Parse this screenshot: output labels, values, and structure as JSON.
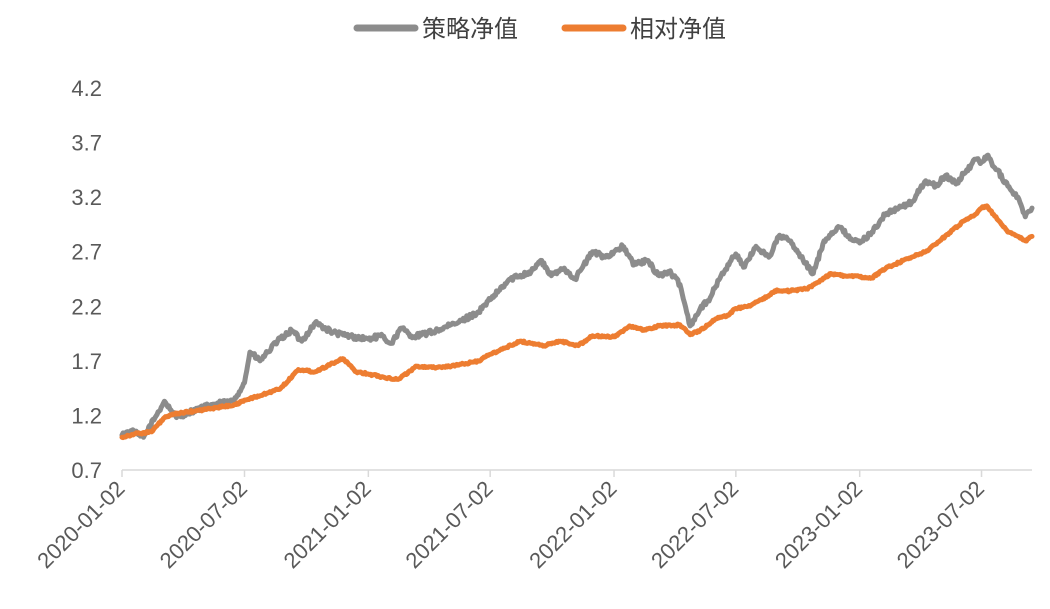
{
  "chart_data": {
    "type": "line",
    "title": "",
    "xlabel": "",
    "ylabel": "",
    "ylim": [
      0.7,
      4.2
    ],
    "yticks": [
      "4.2",
      "3.7",
      "3.2",
      "2.7",
      "2.2",
      "1.7",
      "1.2",
      "0.7"
    ],
    "xticks": [
      "2020-01-02",
      "2020-07-02",
      "2021-01-02",
      "2021-07-02",
      "2022-01-02",
      "2022-07-02",
      "2023-01-02",
      "2023-07-02"
    ],
    "xrange": [
      "2020-01-02",
      "2023-09-15"
    ],
    "legend_position": "top-center",
    "grid": false,
    "series": [
      {
        "name": "策略净值",
        "color": "#8c8c8c",
        "points": [
          [
            "2020-01-02",
            1.02
          ],
          [
            "2020-01-15",
            1.06
          ],
          [
            "2020-02-03",
            1.0
          ],
          [
            "2020-02-20",
            1.18
          ],
          [
            "2020-03-05",
            1.33
          ],
          [
            "2020-03-23",
            1.18
          ],
          [
            "2020-04-15",
            1.24
          ],
          [
            "2020-05-15",
            1.3
          ],
          [
            "2020-06-15",
            1.33
          ],
          [
            "2020-07-02",
            1.5
          ],
          [
            "2020-07-10",
            1.78
          ],
          [
            "2020-07-25",
            1.7
          ],
          [
            "2020-08-20",
            1.88
          ],
          [
            "2020-09-10",
            1.98
          ],
          [
            "2020-09-25",
            1.88
          ],
          [
            "2020-10-15",
            2.05
          ],
          [
            "2020-11-10",
            1.96
          ],
          [
            "2020-12-10",
            1.92
          ],
          [
            "2021-01-02",
            1.9
          ],
          [
            "2021-01-20",
            1.93
          ],
          [
            "2021-02-05",
            1.86
          ],
          [
            "2021-02-20",
            2.0
          ],
          [
            "2021-03-10",
            1.92
          ],
          [
            "2021-04-15",
            1.98
          ],
          [
            "2021-05-15",
            2.05
          ],
          [
            "2021-06-15",
            2.15
          ],
          [
            "2021-07-02",
            2.26
          ],
          [
            "2021-08-01",
            2.45
          ],
          [
            "2021-09-01",
            2.52
          ],
          [
            "2021-09-15",
            2.62
          ],
          [
            "2021-10-01",
            2.48
          ],
          [
            "2021-10-20",
            2.55
          ],
          [
            "2021-11-05",
            2.45
          ],
          [
            "2021-12-01",
            2.7
          ],
          [
            "2021-12-20",
            2.65
          ],
          [
            "2022-01-02",
            2.7
          ],
          [
            "2022-01-15",
            2.75
          ],
          [
            "2022-02-01",
            2.58
          ],
          [
            "2022-02-20",
            2.62
          ],
          [
            "2022-03-10",
            2.48
          ],
          [
            "2022-03-25",
            2.52
          ],
          [
            "2022-04-10",
            2.4
          ],
          [
            "2022-04-25",
            2.02
          ],
          [
            "2022-05-10",
            2.18
          ],
          [
            "2022-05-25",
            2.28
          ],
          [
            "2022-06-10",
            2.48
          ],
          [
            "2022-06-25",
            2.62
          ],
          [
            "2022-07-02",
            2.68
          ],
          [
            "2022-07-15",
            2.56
          ],
          [
            "2022-08-01",
            2.75
          ],
          [
            "2022-08-20",
            2.65
          ],
          [
            "2022-09-05",
            2.85
          ],
          [
            "2022-09-20",
            2.8
          ],
          [
            "2022-10-10",
            2.62
          ],
          [
            "2022-10-25",
            2.5
          ],
          [
            "2022-11-10",
            2.8
          ],
          [
            "2022-12-01",
            2.93
          ],
          [
            "2022-12-25",
            2.8
          ],
          [
            "2023-01-02",
            2.78
          ],
          [
            "2023-01-20",
            2.88
          ],
          [
            "2023-02-10",
            3.05
          ],
          [
            "2023-03-01",
            3.1
          ],
          [
            "2023-03-20",
            3.15
          ],
          [
            "2023-04-10",
            3.35
          ],
          [
            "2023-04-25",
            3.3
          ],
          [
            "2023-05-10",
            3.4
          ],
          [
            "2023-05-25",
            3.32
          ],
          [
            "2023-06-10",
            3.45
          ],
          [
            "2023-06-25",
            3.55
          ],
          [
            "2023-07-02",
            3.52
          ],
          [
            "2023-07-10",
            3.58
          ],
          [
            "2023-07-25",
            3.45
          ],
          [
            "2023-08-10",
            3.3
          ],
          [
            "2023-08-25",
            3.2
          ],
          [
            "2023-09-05",
            3.02
          ],
          [
            "2023-09-15",
            3.1
          ]
        ]
      },
      {
        "name": "相对净值",
        "color": "#ed7d31",
        "points": [
          [
            "2020-01-02",
            1.0
          ],
          [
            "2020-01-20",
            1.03
          ],
          [
            "2020-02-15",
            1.05
          ],
          [
            "2020-03-05",
            1.18
          ],
          [
            "2020-03-25",
            1.22
          ],
          [
            "2020-04-20",
            1.24
          ],
          [
            "2020-05-20",
            1.27
          ],
          [
            "2020-06-20",
            1.3
          ],
          [
            "2020-07-02",
            1.34
          ],
          [
            "2020-07-25",
            1.38
          ],
          [
            "2020-08-25",
            1.45
          ],
          [
            "2020-09-20",
            1.62
          ],
          [
            "2020-10-15",
            1.6
          ],
          [
            "2020-11-10",
            1.68
          ],
          [
            "2020-11-25",
            1.72
          ],
          [
            "2020-12-15",
            1.6
          ],
          [
            "2021-01-02",
            1.58
          ],
          [
            "2021-01-25",
            1.55
          ],
          [
            "2021-02-15",
            1.53
          ],
          [
            "2021-03-15",
            1.65
          ],
          [
            "2021-04-15",
            1.64
          ],
          [
            "2021-05-15",
            1.66
          ],
          [
            "2021-06-15",
            1.7
          ],
          [
            "2021-07-02",
            1.76
          ],
          [
            "2021-07-25",
            1.82
          ],
          [
            "2021-08-15",
            1.88
          ],
          [
            "2021-09-01",
            1.86
          ],
          [
            "2021-09-20",
            1.84
          ],
          [
            "2021-10-15",
            1.88
          ],
          [
            "2021-11-10",
            1.84
          ],
          [
            "2021-12-01",
            1.93
          ],
          [
            "2021-12-20",
            1.92
          ],
          [
            "2022-01-02",
            1.92
          ],
          [
            "2022-01-25",
            2.02
          ],
          [
            "2022-02-15",
            1.98
          ],
          [
            "2022-03-10",
            2.02
          ],
          [
            "2022-04-10",
            2.03
          ],
          [
            "2022-04-25",
            1.94
          ],
          [
            "2022-05-10",
            1.98
          ],
          [
            "2022-06-01",
            2.08
          ],
          [
            "2022-06-20",
            2.12
          ],
          [
            "2022-07-02",
            2.18
          ],
          [
            "2022-07-20",
            2.2
          ],
          [
            "2022-08-10",
            2.26
          ],
          [
            "2022-09-01",
            2.35
          ],
          [
            "2022-09-20",
            2.34
          ],
          [
            "2022-10-15",
            2.36
          ],
          [
            "2022-11-01",
            2.42
          ],
          [
            "2022-11-20",
            2.5
          ],
          [
            "2022-12-10",
            2.48
          ],
          [
            "2023-01-02",
            2.47
          ],
          [
            "2023-01-20",
            2.46
          ],
          [
            "2023-02-10",
            2.55
          ],
          [
            "2023-03-01",
            2.6
          ],
          [
            "2023-03-20",
            2.65
          ],
          [
            "2023-04-10",
            2.7
          ],
          [
            "2023-05-01",
            2.8
          ],
          [
            "2023-05-20",
            2.9
          ],
          [
            "2023-06-10",
            3.0
          ],
          [
            "2023-06-25",
            3.05
          ],
          [
            "2023-07-02",
            3.1
          ],
          [
            "2023-07-10",
            3.12
          ],
          [
            "2023-07-25",
            3.0
          ],
          [
            "2023-08-10",
            2.88
          ],
          [
            "2023-08-25",
            2.84
          ],
          [
            "2023-09-05",
            2.8
          ],
          [
            "2023-09-15",
            2.84
          ]
        ]
      }
    ]
  }
}
